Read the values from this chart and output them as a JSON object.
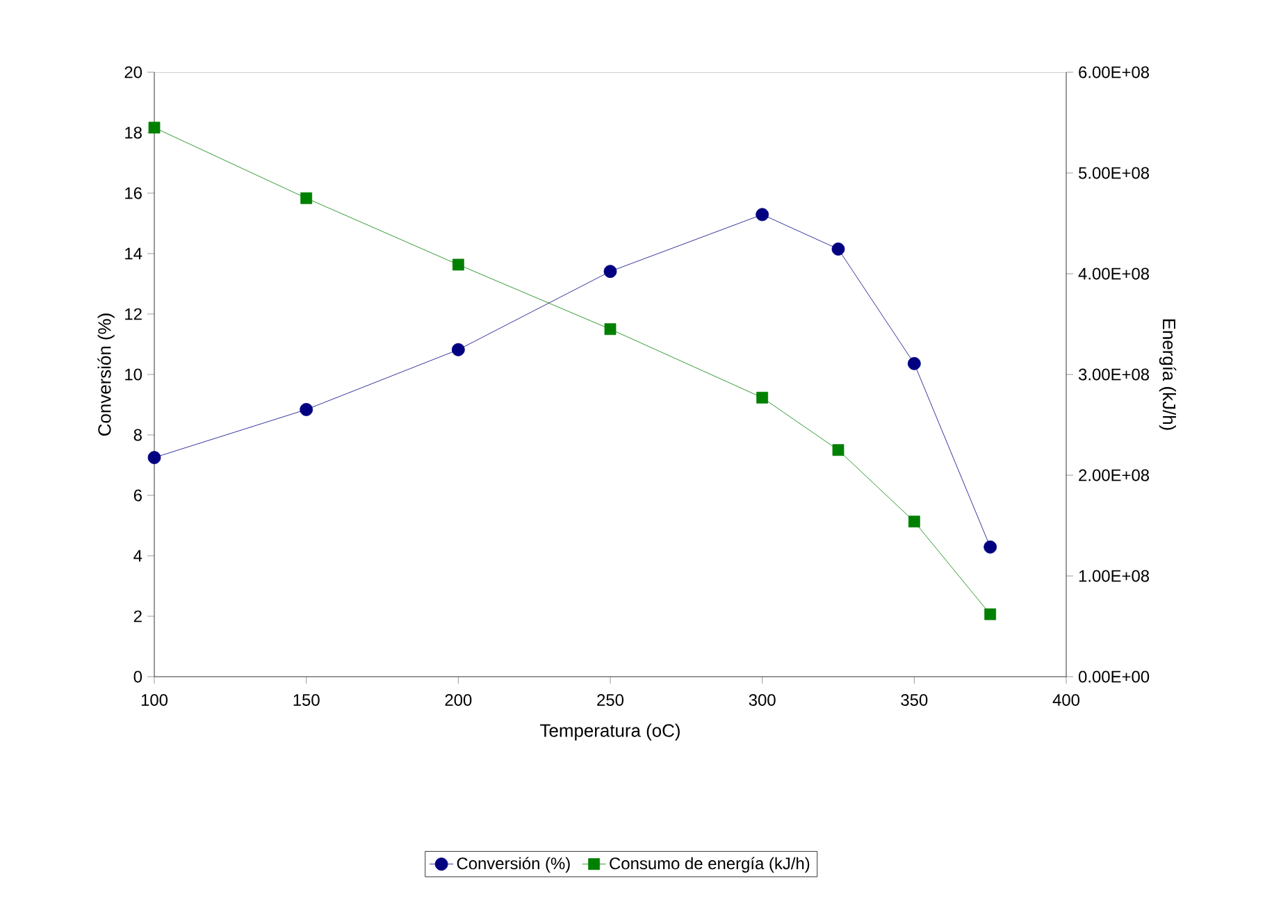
{
  "chart_data": {
    "type": "line",
    "xlabel": "Temperatura (oC)",
    "ylabel": "Conversión (%)",
    "y2label": "Energía (kJ/h)",
    "x": [
      100,
      150,
      200,
      250,
      300,
      325,
      350,
      375
    ],
    "series": [
      {
        "name": "Conversión (%)",
        "color": "#000080",
        "marker": "circle",
        "values": [
          7.25,
          8.84,
          10.82,
          13.41,
          15.29,
          14.15,
          10.36,
          4.29
        ]
      },
      {
        "name": "Consumo de energía (kJ/h)",
        "color": "#008000",
        "marker": "square",
        "axis": "y2",
        "values": [
          545000000,
          475000000,
          409000000,
          345000000,
          277000000,
          225000000,
          154000000,
          62000000
        ]
      }
    ],
    "xlim": [
      100,
      400
    ],
    "xticks": [
      100,
      150,
      200,
      250,
      300,
      350,
      400
    ],
    "ylim": [
      0,
      20
    ],
    "yticks": [
      0,
      2,
      4,
      6,
      8,
      10,
      12,
      14,
      16,
      18,
      20
    ],
    "y2lim": [
      0,
      600000000
    ],
    "y2ticks": [
      {
        "value": 0,
        "label": "0.00E+00"
      },
      {
        "value": 100000000,
        "label": "1.00E+08"
      },
      {
        "value": 200000000,
        "label": "2.00E+08"
      },
      {
        "value": 300000000,
        "label": "3.00E+08"
      },
      {
        "value": 400000000,
        "label": "4.00E+08"
      },
      {
        "value": 500000000,
        "label": "5.00E+08"
      },
      {
        "value": 600000000,
        "label": "6.00E+08"
      }
    ],
    "grid": false,
    "legend": "bottom",
    "line_style": "solid"
  }
}
